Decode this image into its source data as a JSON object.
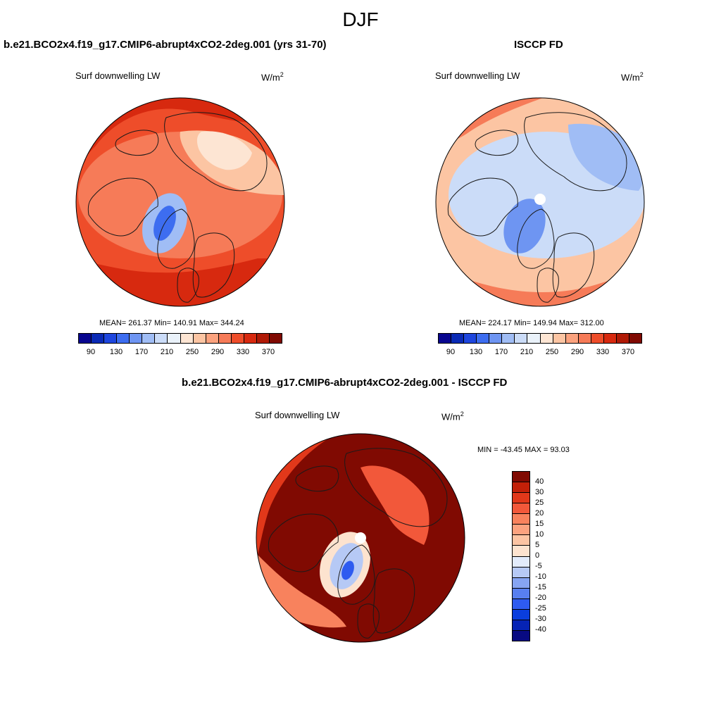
{
  "season": "DJF",
  "colors": {
    "abs_palette": [
      "#08068f",
      "#0a2ab5",
      "#1e46de",
      "#3d6df0",
      "#6e95f2",
      "#a0bdf5",
      "#cbdcf8",
      "#eaf2fa",
      "#fde5d3",
      "#fcc5a3",
      "#fba27e",
      "#f67b58",
      "#ee4d2a",
      "#d7290f",
      "#b01a06",
      "#800a02"
    ],
    "diff_palette": [
      "#080a82",
      "#0623b5",
      "#0a3ede",
      "#2e5bf0",
      "#587ff0",
      "#86a4f2",
      "#b6c9f5",
      "#e2ebfb",
      "#fde3cf",
      "#fcc4a3",
      "#fba27f",
      "#f8825d",
      "#f2583a",
      "#e2381a",
      "#c22008",
      "#800a02"
    ]
  },
  "chart_data": [
    {
      "type": "heatmap",
      "projection": "north-polar-stereographic",
      "title": "b.e21.BCO2x4.f19_g17.CMIP6-abrupt4xCO2-2deg.001 (yrs 31-70)",
      "variable": "Surf downwelling LW",
      "units": "W/m",
      "units_sup": "2",
      "stats": "MEAN= 261.37  Min= 140.91  Max= 344.24",
      "mean": 261.37,
      "min": 140.91,
      "max": 344.24,
      "colorbar_levels": [
        90,
        110,
        130,
        150,
        170,
        190,
        210,
        230,
        250,
        270,
        290,
        310,
        330,
        350,
        370
      ],
      "colorbar_ticks": [
        "90",
        "130",
        "170",
        "210",
        "250",
        "290",
        "330",
        "370"
      ],
      "regions": [
        {
          "name": "background",
          "level": 12
        },
        {
          "name": "north-atlantic-pacific",
          "level": 13
        },
        {
          "name": "high-lat-ocean",
          "level": 11
        },
        {
          "name": "siberia-cool",
          "level": 9
        },
        {
          "name": "canada-cool",
          "level": 8
        },
        {
          "name": "greenland-interior",
          "level": 5
        },
        {
          "name": "greenland-core",
          "level": 3
        }
      ]
    },
    {
      "type": "heatmap",
      "projection": "north-polar-stereographic",
      "title": "ISCCP FD",
      "variable": "Surf downwelling LW",
      "units": "W/m",
      "units_sup": "2",
      "stats": "MEAN= 224.17  Min= 149.94  Max= 312.00",
      "mean": 224.17,
      "min": 149.94,
      "max": 312.0,
      "colorbar_levels": [
        90,
        110,
        130,
        150,
        170,
        190,
        210,
        230,
        250,
        270,
        290,
        310,
        330,
        350,
        370
      ],
      "colorbar_ticks": [
        "90",
        "130",
        "170",
        "210",
        "250",
        "290",
        "330",
        "370"
      ],
      "regions": [
        {
          "name": "background",
          "level": 8
        },
        {
          "name": "mid-lat-ring",
          "level": 9
        },
        {
          "name": "arctic-basin",
          "level": 6
        },
        {
          "name": "siberia",
          "level": 5
        },
        {
          "name": "greenland",
          "level": 4
        },
        {
          "name": "north-atlantic",
          "level": 11
        }
      ]
    },
    {
      "type": "heatmap",
      "projection": "north-polar-stereographic",
      "title": "b.e21.BCO2x4.f19_g17.CMIP6-abrupt4xCO2-2deg.001 - ISCCP FD",
      "variable": "Surf downwelling LW",
      "units": "W/m",
      "units_sup": "2",
      "stats": "MIN = -43.45 MAX =  93.03",
      "min": -43.45,
      "max": 93.03,
      "colorbar_levels": [
        -40,
        -30,
        -25,
        -20,
        -15,
        -10,
        -5,
        0,
        5,
        10,
        15,
        20,
        25,
        30,
        40
      ],
      "colorbar_ticks": [
        "40",
        "30",
        "25",
        "20",
        "15",
        "10",
        "5",
        "0",
        "-5",
        "-10",
        "-15",
        "-20",
        "-25",
        "-30",
        "-40"
      ],
      "regions": [
        {
          "name": "background",
          "level": 15
        },
        {
          "name": "land-ring",
          "level": 13
        },
        {
          "name": "europe-asia",
          "level": 12
        },
        {
          "name": "north-america",
          "level": 11
        },
        {
          "name": "greenland-edge",
          "level": 8
        },
        {
          "name": "greenland-interior",
          "level": 6
        },
        {
          "name": "greenland-core",
          "level": 3
        }
      ]
    }
  ]
}
